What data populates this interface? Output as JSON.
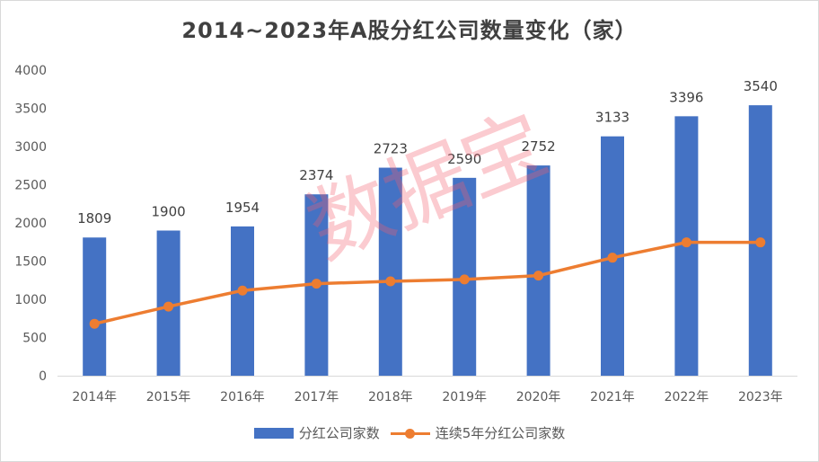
{
  "chart_data": {
    "type": "bar",
    "title": "2014~2023年A股分红公司数量变化（家）",
    "categories": [
      "2014年",
      "2015年",
      "2016年",
      "2017年",
      "2018年",
      "2019年",
      "2020年",
      "2021年",
      "2022年",
      "2023年"
    ],
    "series": [
      {
        "name": "分红公司家数",
        "type": "bar",
        "color": "#4472c4",
        "values": [
          1809,
          1900,
          1954,
          2374,
          2723,
          2590,
          2752,
          3133,
          3396,
          3540
        ],
        "data_labels": [
          "1809",
          "1900",
          "1954",
          "2374",
          "2723",
          "2590",
          "2752",
          "3133",
          "3396",
          "3540"
        ]
      },
      {
        "name": "连续5年分红公司家数",
        "type": "line",
        "color": "#ed7d31",
        "values": [
          680,
          905,
          1115,
          1205,
          1235,
          1260,
          1310,
          1545,
          1745,
          1745
        ]
      }
    ],
    "yticks": [
      "0",
      "500",
      "1000",
      "1500",
      "2000",
      "2500",
      "3000",
      "3500",
      "4000"
    ],
    "ylim": [
      0,
      4000
    ],
    "legend": "bottom",
    "grid": false
  },
  "watermark": "数据宝"
}
